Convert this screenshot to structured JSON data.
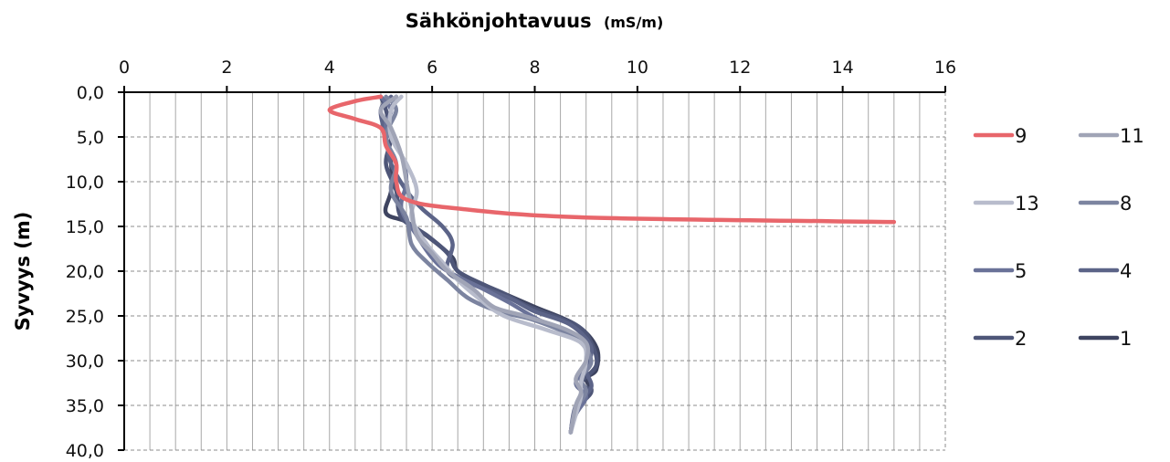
{
  "chart_data": {
    "type": "line",
    "title": "Sähkönjohtavuus",
    "title_unit": "(mS/m)",
    "xlabel": "",
    "ylabel": "Syvyys (m)",
    "xlim": [
      0,
      16
    ],
    "ylim": [
      0,
      40
    ],
    "y_inverted": true,
    "x_axis_position": "top",
    "x_ticks": [
      0,
      2,
      4,
      6,
      8,
      10,
      12,
      14,
      16
    ],
    "x_tick_labels": [
      "0",
      "2",
      "4",
      "6",
      "8",
      "10",
      "12",
      "14",
      "16"
    ],
    "y_ticks": [
      0,
      5,
      10,
      15,
      20,
      25,
      30,
      35,
      40
    ],
    "y_tick_labels": [
      "0,0",
      "5,0",
      "10,0",
      "15,0",
      "20,0",
      "25,0",
      "30,0",
      "35,0",
      "40,0"
    ],
    "grid": true,
    "legend_position": "right",
    "series": [
      {
        "name": "9",
        "color": "#e8666b",
        "points": [
          [
            5.0,
            0.5
          ],
          [
            4.5,
            1.0
          ],
          [
            4.0,
            2.0
          ],
          [
            4.5,
            3.0
          ],
          [
            5.0,
            4.0
          ],
          [
            5.1,
            6.0
          ],
          [
            5.3,
            8.0
          ],
          [
            5.3,
            10.0
          ],
          [
            5.5,
            12.0
          ],
          [
            6.5,
            13.0
          ],
          [
            9.0,
            14.0
          ],
          [
            15.0,
            14.5
          ]
        ]
      },
      {
        "name": "11",
        "color": "#a0a4b6",
        "points": [
          [
            5.3,
            0.5
          ],
          [
            5.0,
            2.0
          ],
          [
            5.2,
            4.0
          ],
          [
            5.4,
            7.0
          ],
          [
            5.5,
            10.0
          ],
          [
            5.6,
            13.0
          ],
          [
            5.7,
            16.0
          ],
          [
            6.0,
            18.0
          ],
          [
            6.3,
            20.0
          ],
          [
            6.8,
            22.0
          ],
          [
            7.2,
            24.0
          ],
          [
            7.8,
            25.0
          ],
          [
            8.6,
            26.5
          ],
          [
            9.0,
            28.0
          ],
          [
            9.0,
            30.0
          ],
          [
            8.8,
            32.0
          ],
          [
            8.9,
            33.5
          ],
          [
            8.8,
            35.0
          ],
          [
            8.7,
            38.0
          ]
        ]
      },
      {
        "name": "13",
        "color": "#b8bccc",
        "points": [
          [
            5.4,
            0.5
          ],
          [
            5.2,
            2.0
          ],
          [
            5.2,
            5.0
          ],
          [
            5.5,
            8.0
          ],
          [
            5.7,
            11.0
          ],
          [
            5.6,
            14.0
          ],
          [
            5.9,
            17.0
          ],
          [
            6.2,
            19.0
          ],
          [
            6.5,
            21.0
          ],
          [
            6.9,
            23.0
          ],
          [
            7.4,
            25.0
          ],
          [
            8.2,
            26.5
          ],
          [
            8.9,
            28.0
          ],
          [
            9.0,
            30.0
          ],
          [
            8.9,
            32.5
          ],
          [
            8.9,
            34.0
          ],
          [
            8.8,
            36.0
          ],
          [
            8.7,
            38.0
          ]
        ]
      },
      {
        "name": "8",
        "color": "#7c84a0",
        "points": [
          [
            5.1,
            0.5
          ],
          [
            5.3,
            2.0
          ],
          [
            5.1,
            5.0
          ],
          [
            5.3,
            8.0
          ],
          [
            5.2,
            11.0
          ],
          [
            5.5,
            14.0
          ],
          [
            5.6,
            17.0
          ],
          [
            5.9,
            19.0
          ],
          [
            6.3,
            21.0
          ],
          [
            6.7,
            23.0
          ],
          [
            7.3,
            24.5
          ],
          [
            8.0,
            25.5
          ],
          [
            8.8,
            27.5
          ],
          [
            9.1,
            30.0
          ],
          [
            8.9,
            32.0
          ],
          [
            9.0,
            33.5
          ],
          [
            8.8,
            35.5
          ],
          [
            8.7,
            38.0
          ]
        ]
      },
      {
        "name": "5",
        "color": "#6a7298",
        "points": [
          [
            5.0,
            0.5
          ],
          [
            5.2,
            2.0
          ],
          [
            5.1,
            4.0
          ],
          [
            5.4,
            7.0
          ],
          [
            5.5,
            10.0
          ],
          [
            5.4,
            13.0
          ],
          [
            5.7,
            16.0
          ],
          [
            6.0,
            18.5
          ],
          [
            6.3,
            20.0
          ],
          [
            7.0,
            22.0
          ],
          [
            7.5,
            23.5
          ],
          [
            8.1,
            25.5
          ],
          [
            8.9,
            27.5
          ],
          [
            9.0,
            30.0
          ],
          [
            8.8,
            32.5
          ],
          [
            9.0,
            34.0
          ],
          [
            8.8,
            36.0
          ],
          [
            8.7,
            38.0
          ]
        ]
      },
      {
        "name": "4",
        "color": "#5c6488",
        "points": [
          [
            5.2,
            0.5
          ],
          [
            5.0,
            2.0
          ],
          [
            5.1,
            5.0
          ],
          [
            5.2,
            8.0
          ],
          [
            5.5,
            11.0
          ],
          [
            5.8,
            13.0
          ],
          [
            6.2,
            15.0
          ],
          [
            6.4,
            17.0
          ],
          [
            6.3,
            20.0
          ],
          [
            6.8,
            21.5
          ],
          [
            7.5,
            23.0
          ],
          [
            8.0,
            24.5
          ],
          [
            8.7,
            26.0
          ],
          [
            9.1,
            28.5
          ],
          [
            9.0,
            31.0
          ],
          [
            9.1,
            33.0
          ],
          [
            8.8,
            35.0
          ],
          [
            8.7,
            38.0
          ]
        ]
      },
      {
        "name": "2",
        "color": "#4e5678",
        "points": [
          [
            5.0,
            0.5
          ],
          [
            5.1,
            2.0
          ],
          [
            5.2,
            5.0
          ],
          [
            5.1,
            8.0
          ],
          [
            5.3,
            11.0
          ],
          [
            5.4,
            14.0
          ],
          [
            5.9,
            16.0
          ],
          [
            6.3,
            18.0
          ],
          [
            6.5,
            20.0
          ],
          [
            7.0,
            21.5
          ],
          [
            7.4,
            22.5
          ],
          [
            7.9,
            24.0
          ],
          [
            8.8,
            26.0
          ],
          [
            9.1,
            28.0
          ],
          [
            9.2,
            30.5
          ],
          [
            8.9,
            32.5
          ],
          [
            9.1,
            33.5
          ],
          [
            8.8,
            35.5
          ],
          [
            8.7,
            38.0
          ]
        ]
      },
      {
        "name": "1",
        "color": "#3e4460",
        "points": [
          [
            5.3,
            0.5
          ],
          [
            5.2,
            2.0
          ],
          [
            5.1,
            5.0
          ],
          [
            5.2,
            8.0
          ],
          [
            5.2,
            11.0
          ],
          [
            5.1,
            13.5
          ],
          [
            5.5,
            14.5
          ],
          [
            6.0,
            16.5
          ],
          [
            6.4,
            18.5
          ],
          [
            6.5,
            20.0
          ],
          [
            7.0,
            21.5
          ],
          [
            7.4,
            22.5
          ],
          [
            8.0,
            24.0
          ],
          [
            8.8,
            26.0
          ],
          [
            9.2,
            28.5
          ],
          [
            9.2,
            31.0
          ],
          [
            9.0,
            32.0
          ],
          [
            9.1,
            33.5
          ],
          [
            8.8,
            35.5
          ],
          [
            8.7,
            38.0
          ]
        ]
      }
    ],
    "legend": [
      {
        "name": "9",
        "series_index": 0
      },
      {
        "name": "11",
        "series_index": 1
      },
      {
        "name": "13",
        "series_index": 2
      },
      {
        "name": "8",
        "series_index": 3
      },
      {
        "name": "5",
        "series_index": 4
      },
      {
        "name": "4",
        "series_index": 5
      },
      {
        "name": "2",
        "series_index": 6
      },
      {
        "name": "1",
        "series_index": 7
      }
    ]
  }
}
